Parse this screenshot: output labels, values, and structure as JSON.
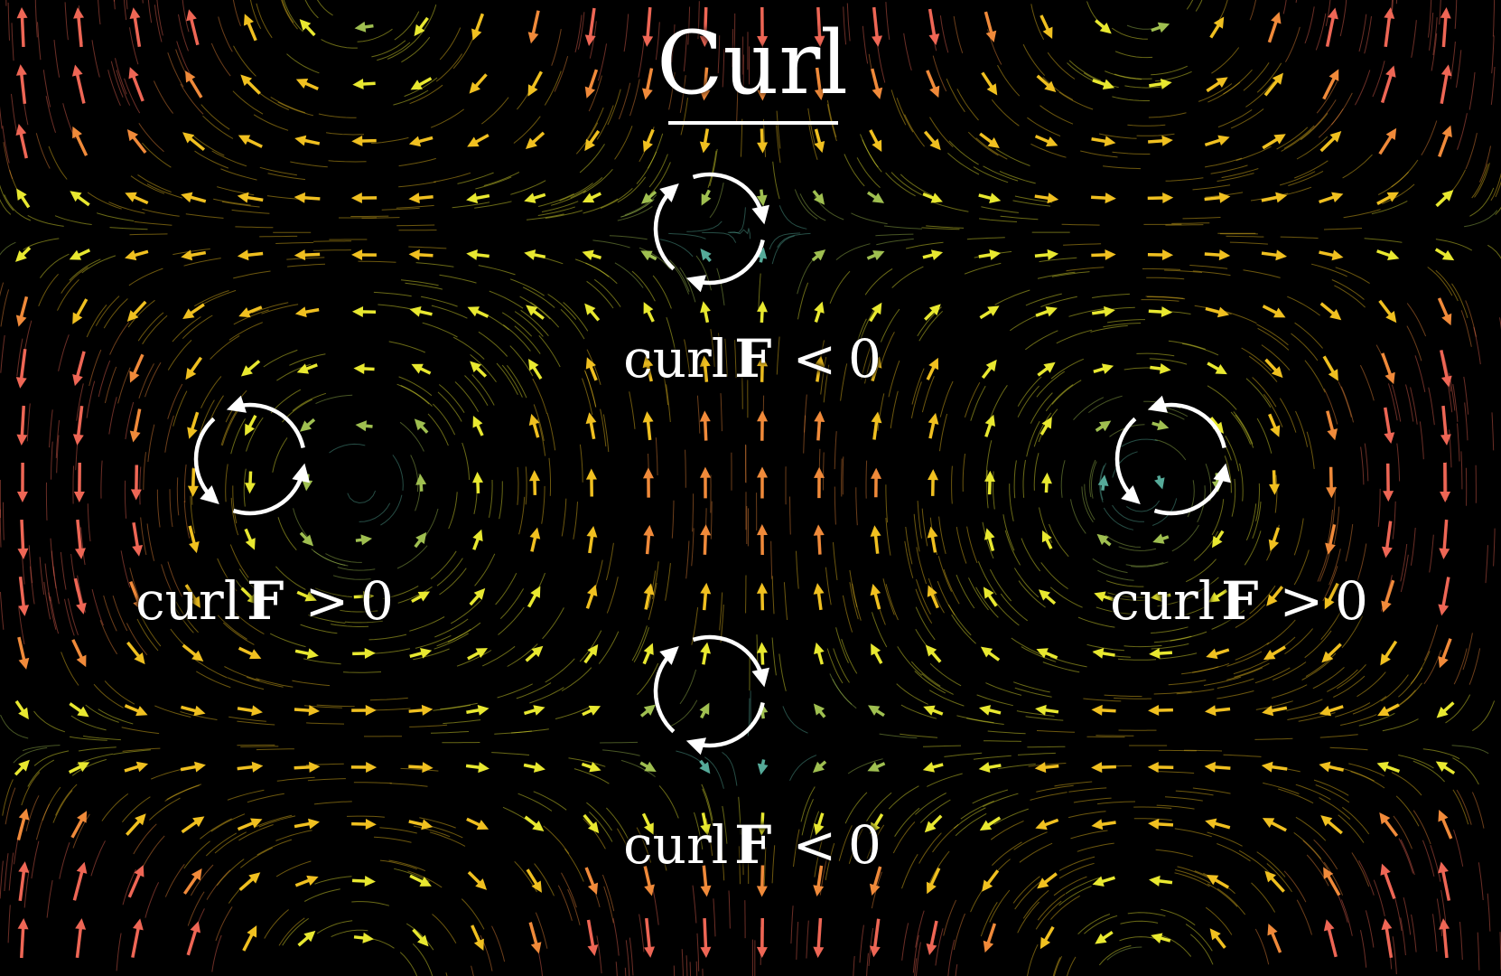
{
  "title": "Curl",
  "labels": [
    {
      "id": "top",
      "prefix": "curl",
      "symbol": "F",
      "relation": "<",
      "value": "0"
    },
    {
      "id": "left",
      "prefix": "curl",
      "symbol": "F",
      "relation": ">",
      "value": "0"
    },
    {
      "id": "right",
      "prefix": "curl",
      "symbol": "F",
      "relation": ">",
      "value": "0"
    },
    {
      "id": "bottom",
      "prefix": "curl",
      "symbol": "F",
      "relation": "<",
      "value": "0"
    }
  ],
  "rotations": [
    {
      "id": "top",
      "direction": "clockwise"
    },
    {
      "id": "left",
      "direction": "counterclockwise"
    },
    {
      "id": "right",
      "direction": "counterclockwise"
    },
    {
      "id": "bottom",
      "direction": "clockwise"
    }
  ],
  "colors": {
    "background": "#000000",
    "fast": "#ee6655",
    "medium": "#f0c020",
    "slow": "#e8e830",
    "calm": "#55aa99",
    "circle": "#ffffff"
  }
}
